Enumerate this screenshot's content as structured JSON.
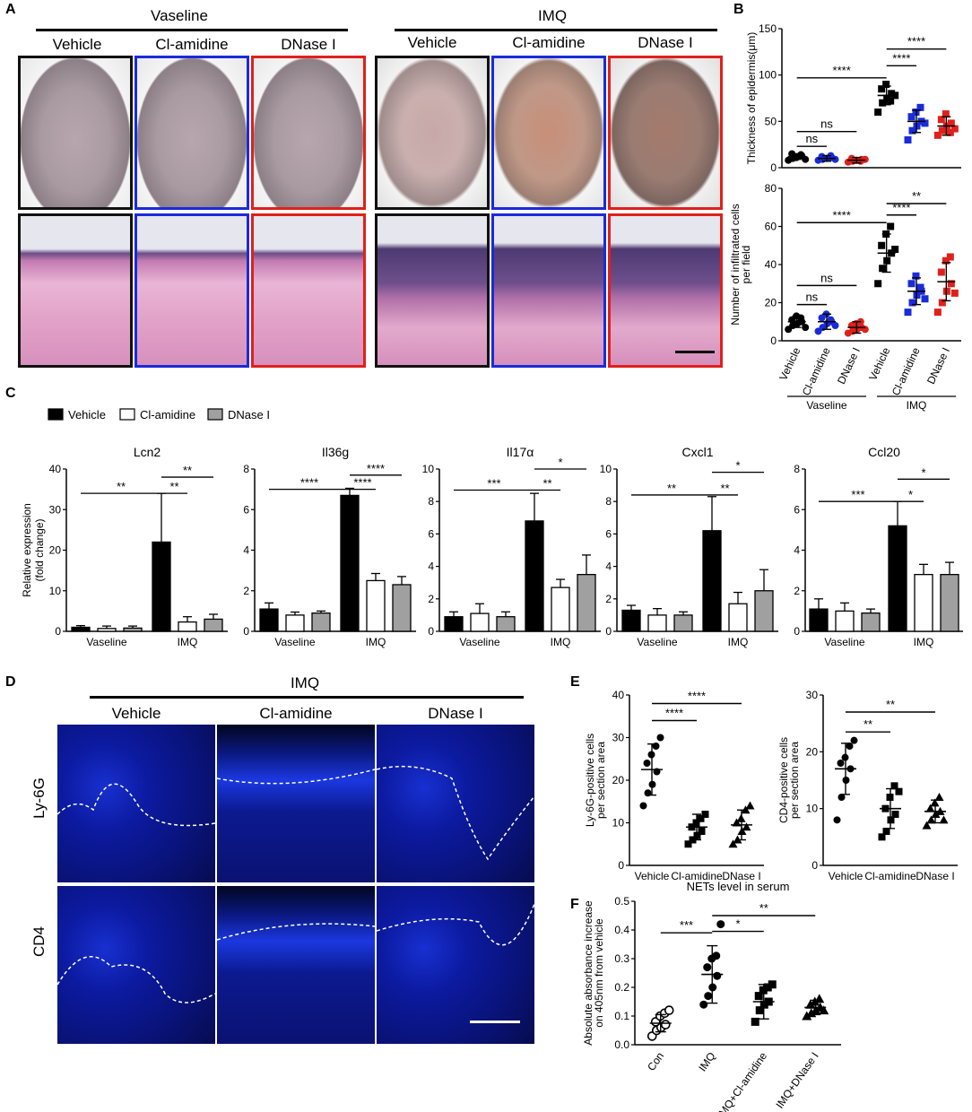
{
  "panel_labels": {
    "A": "A",
    "B": "B",
    "C": "C",
    "D": "D",
    "E": "E",
    "F": "F"
  },
  "panelA": {
    "groups": [
      "Vaseline",
      "IMQ"
    ],
    "columns": [
      "Vehicle",
      "Cl-amidine",
      "DNase I",
      "Vehicle",
      "Cl-amidine",
      "DNase I"
    ],
    "frame_colors": [
      "#111111",
      "#1a2bd8",
      "#e0201b",
      "#111111",
      "#1a2bd8",
      "#e0201b"
    ]
  },
  "panelD": {
    "group": "IMQ",
    "columns": [
      "Vehicle",
      "Cl-amidine",
      "DNase I"
    ],
    "rows": [
      "Ly-6G",
      "CD4"
    ]
  },
  "chart_data": [
    {
      "id": "B_top",
      "type": "scatter",
      "ylabel": "Thickness of epidermis(μm)",
      "ylim": [
        0,
        150
      ],
      "yticks": [
        0,
        50,
        100,
        150
      ],
      "categories": [
        "Vehicle",
        "Cl-amidine",
        "DNase I",
        "Vehicle",
        "Cl-amidine",
        "DNase I"
      ],
      "colors": [
        "#000000",
        "#1a2bd8",
        "#e0201b",
        "#000000",
        "#1a2bd8",
        "#e0201b"
      ],
      "markers": [
        "circle",
        "circle",
        "circle",
        "square",
        "square",
        "square"
      ],
      "means": [
        12,
        10,
        8,
        78,
        50,
        45
      ],
      "sd": [
        3,
        3,
        3,
        10,
        12,
        10
      ],
      "points": [
        [
          8,
          10,
          12,
          13,
          15,
          11,
          14,
          9
        ],
        [
          8,
          9,
          10,
          11,
          12,
          10,
          13,
          9
        ],
        [
          6,
          7,
          8,
          9,
          10,
          8,
          7,
          9
        ],
        [
          60,
          70,
          75,
          80,
          85,
          90,
          72,
          78
        ],
        [
          30,
          40,
          45,
          50,
          55,
          60,
          65,
          48
        ],
        [
          35,
          40,
          45,
          48,
          52,
          58,
          38,
          42
        ]
      ],
      "sig": [
        {
          "a": 0,
          "b": 1,
          "label": "ns"
        },
        {
          "a": 0,
          "b": 2,
          "label": "ns"
        },
        {
          "a": 0,
          "b": 3,
          "label": "****"
        },
        {
          "a": 3,
          "b": 4,
          "label": "****"
        },
        {
          "a": 3,
          "b": 5,
          "label": "****"
        }
      ]
    },
    {
      "id": "B_bottom",
      "type": "scatter",
      "ylabel": "Number of infiltrated cells per field",
      "ylim": [
        0,
        80
      ],
      "yticks": [
        0,
        20,
        40,
        60,
        80
      ],
      "categories": [
        "Vehicle",
        "Cl-amidine",
        "DNase I",
        "Vehicle",
        "Cl-amidine",
        "DNase I"
      ],
      "group_labels": [
        "Vaseline",
        "IMQ"
      ],
      "colors": [
        "#000000",
        "#1a2bd8",
        "#e0201b",
        "#000000",
        "#1a2bd8",
        "#e0201b"
      ],
      "markers": [
        "circle",
        "circle",
        "circle",
        "square",
        "square",
        "square"
      ],
      "means": [
        10,
        10,
        7,
        46,
        26,
        31
      ],
      "sd": [
        3,
        4,
        3,
        10,
        7,
        10
      ],
      "points": [
        [
          6,
          8,
          9,
          10,
          11,
          13,
          12,
          7
        ],
        [
          5,
          7,
          9,
          10,
          12,
          14,
          11,
          8
        ],
        [
          4,
          5,
          6,
          7,
          8,
          9,
          10,
          6
        ],
        [
          30,
          38,
          42,
          46,
          50,
          56,
          60,
          48
        ],
        [
          15,
          20,
          24,
          26,
          30,
          34,
          28,
          22
        ],
        [
          15,
          20,
          26,
          30,
          36,
          42,
          44,
          25
        ]
      ],
      "sig": [
        {
          "a": 0,
          "b": 1,
          "label": "ns"
        },
        {
          "a": 0,
          "b": 2,
          "label": "ns"
        },
        {
          "a": 0,
          "b": 3,
          "label": "****"
        },
        {
          "a": 3,
          "b": 4,
          "label": "****"
        },
        {
          "a": 3,
          "b": 5,
          "label": "**"
        }
      ]
    },
    {
      "id": "C_Lcn2",
      "type": "bar",
      "title": "Lcn2",
      "ylabel": "Relative expression (fold change)",
      "ylim": [
        0,
        40
      ],
      "yticks": [
        0,
        10,
        20,
        30,
        40
      ],
      "group_labels": [
        "Vaseline",
        "IMQ"
      ],
      "series": [
        {
          "name": "Vehicle",
          "values": [
            1.0,
            22
          ]
        },
        {
          "name": "Cl-amidine",
          "values": [
            0.7,
            2.3
          ]
        },
        {
          "name": "DNase I",
          "values": [
            0.8,
            3.0
          ]
        }
      ],
      "errors": [
        [
          0.4,
          12
        ],
        [
          0.6,
          1.3
        ],
        [
          0.5,
          1.2
        ]
      ],
      "sig": [
        {
          "a": 0,
          "b": 3,
          "label": "**"
        },
        {
          "a": 3,
          "b": 4,
          "label": "**"
        },
        {
          "a": 3,
          "b": 5,
          "label": "**"
        }
      ]
    },
    {
      "id": "C_Il36g",
      "type": "bar",
      "title": "Il36g",
      "ylim": [
        0,
        8
      ],
      "yticks": [
        0,
        2,
        4,
        6,
        8
      ],
      "group_labels": [
        "Vaseline",
        "IMQ"
      ],
      "series": [
        {
          "name": "Vehicle",
          "values": [
            1.1,
            6.7
          ]
        },
        {
          "name": "Cl-amidine",
          "values": [
            0.8,
            2.5
          ]
        },
        {
          "name": "DNase I",
          "values": [
            0.9,
            2.3
          ]
        }
      ],
      "errors": [
        [
          0.3,
          0.35
        ],
        [
          0.15,
          0.35
        ],
        [
          0.1,
          0.4
        ]
      ],
      "sig": [
        {
          "a": 0,
          "b": 3,
          "label": "****"
        },
        {
          "a": 3,
          "b": 4,
          "label": "****"
        },
        {
          "a": 3,
          "b": 5,
          "label": "****"
        }
      ]
    },
    {
      "id": "C_Il17a",
      "type": "bar",
      "title": "Il17α",
      "ylim": [
        0,
        10
      ],
      "yticks": [
        0,
        2,
        4,
        6,
        8,
        10
      ],
      "group_labels": [
        "Vaseline",
        "IMQ"
      ],
      "series": [
        {
          "name": "Vehicle",
          "values": [
            0.9,
            6.8
          ]
        },
        {
          "name": "Cl-amidine",
          "values": [
            1.1,
            2.7
          ]
        },
        {
          "name": "DNase I",
          "values": [
            0.9,
            3.5
          ]
        }
      ],
      "errors": [
        [
          0.3,
          1.7
        ],
        [
          0.6,
          0.5
        ],
        [
          0.3,
          1.2
        ]
      ],
      "sig": [
        {
          "a": 0,
          "b": 3,
          "label": "***"
        },
        {
          "a": 3,
          "b": 4,
          "label": "**"
        },
        {
          "a": 3,
          "b": 5,
          "label": "*"
        }
      ]
    },
    {
      "id": "C_Cxcl1",
      "type": "bar",
      "title": "Cxcl1",
      "ylim": [
        0,
        10
      ],
      "yticks": [
        0,
        2,
        4,
        6,
        8,
        10
      ],
      "group_labels": [
        "Vaseline",
        "IMQ"
      ],
      "series": [
        {
          "name": "Vehicle",
          "values": [
            1.3,
            6.2
          ]
        },
        {
          "name": "Cl-amidine",
          "values": [
            1.0,
            1.7
          ]
        },
        {
          "name": "DNase I",
          "values": [
            1.0,
            2.5
          ]
        }
      ],
      "errors": [
        [
          0.3,
          2.1
        ],
        [
          0.4,
          0.7
        ],
        [
          0.2,
          1.3
        ]
      ],
      "sig": [
        {
          "a": 0,
          "b": 3,
          "label": "**"
        },
        {
          "a": 3,
          "b": 4,
          "label": "**"
        },
        {
          "a": 3,
          "b": 5,
          "label": "*"
        }
      ]
    },
    {
      "id": "C_Ccl20",
      "type": "bar",
      "title": "Ccl20",
      "ylim": [
        0,
        8
      ],
      "yticks": [
        0,
        2,
        4,
        6,
        8
      ],
      "group_labels": [
        "Vaseline",
        "IMQ"
      ],
      "series": [
        {
          "name": "Vehicle",
          "values": [
            1.1,
            5.2
          ]
        },
        {
          "name": "Cl-amidine",
          "values": [
            1.0,
            2.8
          ]
        },
        {
          "name": "DNase I",
          "values": [
            0.9,
            2.8
          ]
        }
      ],
      "errors": [
        [
          0.5,
          1.2
        ],
        [
          0.4,
          0.5
        ],
        [
          0.2,
          0.6
        ]
      ],
      "sig": [
        {
          "a": 0,
          "b": 3,
          "label": "***"
        },
        {
          "a": 3,
          "b": 4,
          "label": "*"
        },
        {
          "a": 3,
          "b": 5,
          "label": "*"
        }
      ]
    },
    {
      "id": "E_Ly6G",
      "type": "scatter",
      "ylabel": "Ly-6G-positive cells per section area",
      "ylim": [
        0,
        40
      ],
      "yticks": [
        0,
        10,
        20,
        30,
        40
      ],
      "categories": [
        "Vehicle",
        "Cl-amidine",
        "DNase I"
      ],
      "markers": [
        "circle",
        "square",
        "triangle"
      ],
      "means": [
        22.5,
        9,
        9.5
      ],
      "sd": [
        6,
        3,
        3.5
      ],
      "points": [
        [
          14,
          17,
          19,
          22,
          24,
          26,
          28,
          30
        ],
        [
          5,
          6,
          7,
          8,
          9,
          10,
          11,
          12
        ],
        [
          5,
          6,
          8,
          9,
          10,
          11,
          13,
          14
        ]
      ],
      "sig": [
        {
          "a": 0,
          "b": 1,
          "label": "****"
        },
        {
          "a": 0,
          "b": 2,
          "label": "****"
        }
      ]
    },
    {
      "id": "E_CD4",
      "type": "scatter",
      "ylabel": "CD4-positive cells per section area",
      "ylim": [
        0,
        30
      ],
      "yticks": [
        0,
        10,
        20,
        30
      ],
      "categories": [
        "Vehicle",
        "Cl-amidine",
        "DNase I"
      ],
      "markers": [
        "circle",
        "square",
        "triangle"
      ],
      "means": [
        17,
        10,
        9.5
      ],
      "sd": [
        4.5,
        3.5,
        2
      ],
      "points": [
        [
          8,
          12,
          15,
          17,
          18,
          19,
          21,
          22
        ],
        [
          5,
          6,
          8,
          9,
          10,
          12,
          14,
          13
        ],
        [
          7,
          8,
          9,
          9.5,
          10,
          11,
          12,
          8
        ]
      ],
      "sig": [
        {
          "a": 0,
          "b": 1,
          "label": "**"
        },
        {
          "a": 0,
          "b": 2,
          "label": "**"
        }
      ]
    },
    {
      "id": "F",
      "type": "scatter",
      "title": "NETs level in serum",
      "ylabel": "Absolute absorbance increase on 405nm from vehicle",
      "ylim": [
        0,
        0.5
      ],
      "yticks": [
        0.0,
        0.1,
        0.2,
        0.3,
        0.4,
        0.5
      ],
      "categories": [
        "Con",
        "IMQ",
        "IMQ+Cl-amidine",
        "IMQ+DNase I"
      ],
      "markers": [
        "open-circle",
        "circle",
        "square",
        "triangle"
      ],
      "means": [
        0.075,
        0.245,
        0.15,
        0.13
      ],
      "sd": [
        0.03,
        0.1,
        0.06,
        0.025
      ],
      "points": [
        [
          0.03,
          0.05,
          0.06,
          0.07,
          0.08,
          0.1,
          0.11,
          0.12
        ],
        [
          0.14,
          0.17,
          0.2,
          0.24,
          0.27,
          0.3,
          0.31,
          0.42
        ],
        [
          0.08,
          0.12,
          0.14,
          0.15,
          0.17,
          0.19,
          0.2,
          0.21
        ],
        [
          0.1,
          0.11,
          0.12,
          0.13,
          0.14,
          0.15,
          0.16,
          0.12
        ]
      ],
      "sig": [
        {
          "a": 0,
          "b": 1,
          "label": "***"
        },
        {
          "a": 1,
          "b": 2,
          "label": "*"
        },
        {
          "a": 1,
          "b": 3,
          "label": "**"
        }
      ]
    }
  ],
  "legendC": [
    {
      "name": "Vehicle",
      "fill": "#000000"
    },
    {
      "name": "Cl-amidine",
      "fill": "#ffffff"
    },
    {
      "name": "DNase I",
      "fill": "#a0a0a0"
    }
  ]
}
